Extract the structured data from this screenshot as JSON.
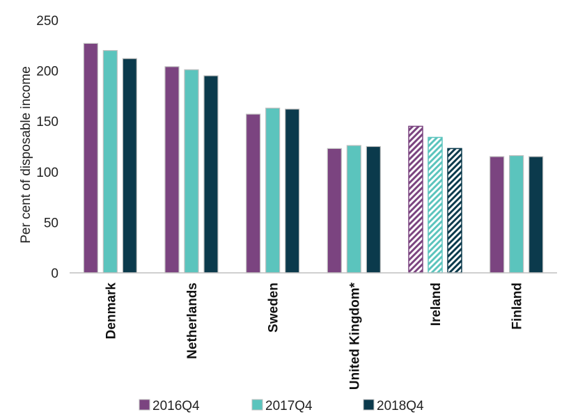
{
  "chart_data": {
    "type": "bar",
    "title": "",
    "xlabel": "",
    "ylabel": "Per cent of disposable income",
    "ylim": [
      0,
      250
    ],
    "yticks": [
      0,
      50,
      100,
      150,
      200,
      250
    ],
    "grid": false,
    "legend_position": "bottom",
    "categories": [
      "Denmark",
      "Netherlands",
      "Sweden",
      "United Kingdom*",
      "Ireland",
      "Finland"
    ],
    "hatched_categories": [
      "Ireland"
    ],
    "series": [
      {
        "name": "2016Q4",
        "color": "#7b4480",
        "values": [
          227,
          204,
          157,
          123,
          145,
          115
        ]
      },
      {
        "name": "2017Q4",
        "color": "#5bc4bd",
        "values": [
          220,
          201,
          163,
          126,
          134,
          116
        ]
      },
      {
        "name": "2018Q4",
        "color": "#0b3a4c",
        "values": [
          212,
          195,
          162,
          125,
          123,
          115
        ]
      }
    ]
  }
}
